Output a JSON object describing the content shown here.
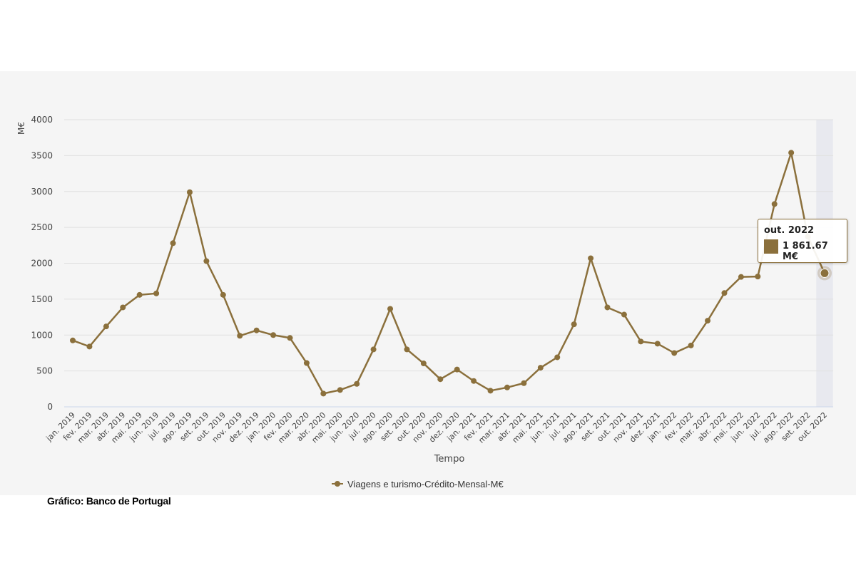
{
  "chart_data": {
    "type": "line",
    "ylabel": "M€",
    "xlabel": "Tempo",
    "ylim": [
      0,
      4000
    ],
    "yticks": [
      "0",
      "500",
      "1000",
      "1500",
      "2000",
      "2500",
      "3000",
      "3500",
      "4000"
    ],
    "categories": [
      "jan. 2019",
      "fev. 2019",
      "mar. 2019",
      "abr. 2019",
      "mai. 2019",
      "jun. 2019",
      "jul. 2019",
      "ago. 2019",
      "set. 2019",
      "out. 2019",
      "nov. 2019",
      "dez. 2019",
      "jan. 2020",
      "fev. 2020",
      "mar. 2020",
      "abr. 2020",
      "mai. 2020",
      "jun. 2020",
      "jul. 2020",
      "ago. 2020",
      "set. 2020",
      "out. 2020",
      "nov. 2020",
      "dez. 2020",
      "jan. 2021",
      "fev. 2021",
      "mar. 2021",
      "abr. 2021",
      "mai. 2021",
      "jun. 2021",
      "jul. 2021",
      "ago. 2021",
      "set. 2021",
      "out. 2021",
      "nov. 2021",
      "dez. 2021",
      "jan. 2022",
      "fev. 2022",
      "mar. 2022",
      "abr. 2022",
      "mai. 2022",
      "jun. 2022",
      "jul. 2022",
      "ago. 2022",
      "set. 2022",
      "out. 2022"
    ],
    "series": [
      {
        "name": "Viagens e turismo-Crédito-Mensal-M€",
        "color": "#8b703c",
        "values": [
          925,
          840,
          1120,
          1385,
          1560,
          1580,
          2280,
          2990,
          2030,
          1560,
          990,
          1065,
          1000,
          960,
          610,
          185,
          235,
          320,
          800,
          1365,
          800,
          605,
          385,
          520,
          360,
          225,
          270,
          330,
          545,
          690,
          1150,
          2070,
          1385,
          1285,
          910,
          880,
          750,
          855,
          1200,
          1585,
          1810,
          1815,
          2825,
          3540,
          2370,
          1861.67
        ]
      }
    ],
    "legend": "bottom-center",
    "grid": true,
    "tooltip": {
      "title": "out. 2022",
      "value": "1 861.67 M€"
    },
    "highlighted_index": 45
  },
  "source": "Gráfico: Banco de Portugal"
}
